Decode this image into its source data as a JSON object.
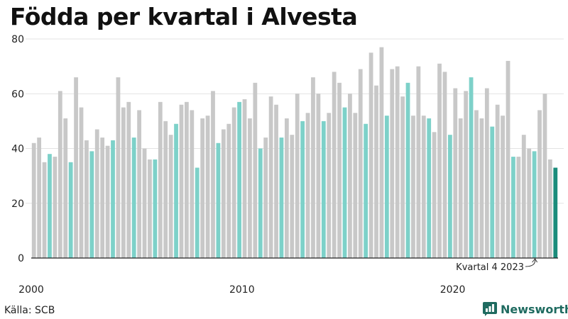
{
  "title": "Födda per kvartal i Alvesta",
  "source": "Källa: SCB",
  "brand": "Newsworthy",
  "colors": {
    "bar_default": "#c8c8c8",
    "bar_q4": "#7dd1c9",
    "bar_latest": "#1b8c7b",
    "brand": "#1f6b60"
  },
  "chart_data": {
    "type": "bar",
    "title": "Födda per kvartal i Alvesta",
    "xlabel": "",
    "ylabel": "",
    "ylim": [
      0,
      80
    ],
    "yticks": [
      0,
      20,
      40,
      60,
      80
    ],
    "x_tick_labels": [
      {
        "label": "2000",
        "index": 0
      },
      {
        "label": "2010",
        "index": 40
      },
      {
        "label": "2020",
        "index": 80
      }
    ],
    "start_year": 2000,
    "values": [
      42,
      44,
      35,
      38,
      37,
      61,
      51,
      35,
      66,
      55,
      43,
      39,
      47,
      44,
      41,
      43,
      66,
      55,
      57,
      44,
      54,
      40,
      36,
      36,
      57,
      50,
      45,
      49,
      56,
      57,
      54,
      33,
      51,
      52,
      61,
      42,
      47,
      49,
      55,
      57,
      58,
      51,
      64,
      40,
      44,
      59,
      56,
      44,
      51,
      45,
      60,
      50,
      53,
      66,
      60,
      50,
      53,
      68,
      64,
      55,
      60,
      53,
      69,
      49,
      75,
      63,
      77,
      52,
      69,
      70,
      59,
      64,
      52,
      70,
      52,
      51,
      46,
      71,
      68,
      45,
      62,
      51,
      61,
      66,
      54,
      51,
      62,
      48,
      56,
      52,
      72,
      37,
      37,
      45,
      40,
      39,
      54,
      60,
      36,
      33
    ],
    "highlight_rule": "quarter 4 highlighted; last bar is latest",
    "annotation": {
      "text": "Kvartal 4 2023",
      "target_index": 95
    }
  }
}
